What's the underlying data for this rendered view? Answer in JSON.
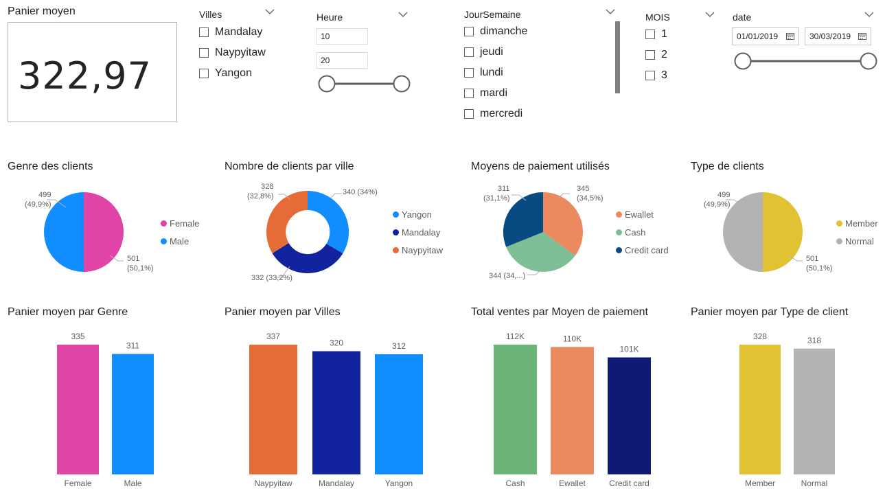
{
  "kpi": {
    "title": "Panier moyen",
    "value": "322,97"
  },
  "slicers": {
    "villes": {
      "title": "Villes",
      "items": [
        "Mandalay",
        "Naypyitaw",
        "Yangon"
      ]
    },
    "heure": {
      "title": "Heure",
      "min": "10",
      "max": "20",
      "range_fraction": [
        0,
        1
      ]
    },
    "jour": {
      "title": "JourSemaine",
      "items": [
        "dimanche",
        "jeudi",
        "lundi",
        "mardi",
        "mercredi"
      ]
    },
    "mois": {
      "title": "MOIS",
      "items": [
        "1",
        "2",
        "3"
      ]
    },
    "date": {
      "title": "date",
      "start": "01/01/2019",
      "end": "30/03/2019",
      "range_fraction": [
        0,
        1
      ]
    }
  },
  "colors": {
    "pink": "#e044a7",
    "blue": "#118dff",
    "darkblue": "#12239e",
    "orange": "#e66c37",
    "salmon": "#eb895f",
    "green": "#6bb47a",
    "lightgreen": "#7fbf97",
    "navy": "#0e1a75",
    "creditcard": "#084a82",
    "yellow": "#e1c233",
    "gray": "#b3b3b3"
  },
  "pies": {
    "genre": {
      "title": "Genre des clients",
      "legend": [
        {
          "name": "Female",
          "color": "#e044a7"
        },
        {
          "name": "Male",
          "color": "#118dff"
        }
      ],
      "labels": [
        {
          "value": "499",
          "pct": "(49,9%)"
        },
        {
          "value": "501",
          "pct": "(50,1%)"
        }
      ]
    },
    "ville": {
      "title": "Nombre de clients par ville",
      "legend": [
        {
          "name": "Yangon",
          "color": "#118dff"
        },
        {
          "name": "Mandalay",
          "color": "#12239e"
        },
        {
          "name": "Naypyitaw",
          "color": "#e66c37"
        }
      ],
      "labels": [
        {
          "text": "340 (34%)"
        },
        {
          "value": "328",
          "pct": "(32,8%)"
        },
        {
          "text": "332 (33,2%)"
        }
      ]
    },
    "paiement": {
      "title": "Moyens de paiement utilisés",
      "legend": [
        {
          "name": "Ewallet",
          "color": "#eb895f"
        },
        {
          "name": "Cash",
          "color": "#7fbf97"
        },
        {
          "name": "Credit card",
          "color": "#084a82"
        }
      ],
      "labels": [
        {
          "value": "311",
          "pct": "(31,1%)"
        },
        {
          "value": "345",
          "pct": "(34,5%)"
        },
        {
          "text": "344 (34,...)"
        }
      ]
    },
    "type": {
      "title": "Type de clients",
      "legend": [
        {
          "name": "Member",
          "color": "#e1c233"
        },
        {
          "name": "Normal",
          "color": "#b3b3b3"
        }
      ],
      "labels": [
        {
          "value": "499",
          "pct": "(49,9%)"
        },
        {
          "value": "501",
          "pct": "(50,1%)"
        }
      ]
    }
  },
  "chart_data": [
    {
      "type": "pie",
      "title": "Genre des clients",
      "categories": [
        "Female",
        "Male"
      ],
      "values": [
        501,
        499
      ],
      "labels": [
        "501 (50,1%)",
        "499 (49,9%)"
      ]
    },
    {
      "type": "pie",
      "subtype": "donut",
      "title": "Nombre de clients par ville",
      "categories": [
        "Yangon",
        "Mandalay",
        "Naypyitaw"
      ],
      "values": [
        340,
        332,
        328
      ],
      "labels": [
        "340 (34%)",
        "332 (33,2%)",
        "328 (32,8%)"
      ]
    },
    {
      "type": "pie",
      "title": "Moyens de paiement utilisés",
      "categories": [
        "Ewallet",
        "Cash",
        "Credit card"
      ],
      "values": [
        345,
        344,
        311
      ],
      "labels": [
        "345 (34,5%)",
        "344 (34,...)",
        "311 (31,1%)"
      ]
    },
    {
      "type": "pie",
      "title": "Type de clients",
      "categories": [
        "Member",
        "Normal"
      ],
      "values": [
        501,
        499
      ],
      "labels": [
        "501 (50,1%)",
        "499 (49,9%)"
      ]
    },
    {
      "type": "bar",
      "title": "Panier moyen par Genre",
      "categories": [
        "Female",
        "Male"
      ],
      "values": [
        335,
        311
      ],
      "labels": [
        "335",
        "311"
      ],
      "colors": [
        "#e044a7",
        "#118dff"
      ],
      "ylim": [
        0,
        335
      ]
    },
    {
      "type": "bar",
      "title": "Panier moyen par Villes",
      "categories": [
        "Naypyitaw",
        "Mandalay",
        "Yangon"
      ],
      "values": [
        337,
        320,
        312
      ],
      "labels": [
        "337",
        "320",
        "312"
      ],
      "colors": [
        "#e66c37",
        "#12239e",
        "#118dff"
      ],
      "ylim": [
        0,
        337
      ]
    },
    {
      "type": "bar",
      "title": "Total ventes par Moyen de paiement",
      "categories": [
        "Cash",
        "Ewallet",
        "Credit card"
      ],
      "values": [
        112,
        110,
        101
      ],
      "labels": [
        "112K",
        "110K",
        "101K"
      ],
      "colors": [
        "#6bb47a",
        "#eb895f",
        "#0e1a75"
      ],
      "ylim": [
        0,
        112
      ]
    },
    {
      "type": "bar",
      "title": "Panier moyen par Type de client",
      "categories": [
        "Member",
        "Normal"
      ],
      "values": [
        328,
        318
      ],
      "labels": [
        "328",
        "318"
      ],
      "colors": [
        "#e1c233",
        "#b3b3b3"
      ],
      "ylim": [
        0,
        328
      ]
    }
  ]
}
